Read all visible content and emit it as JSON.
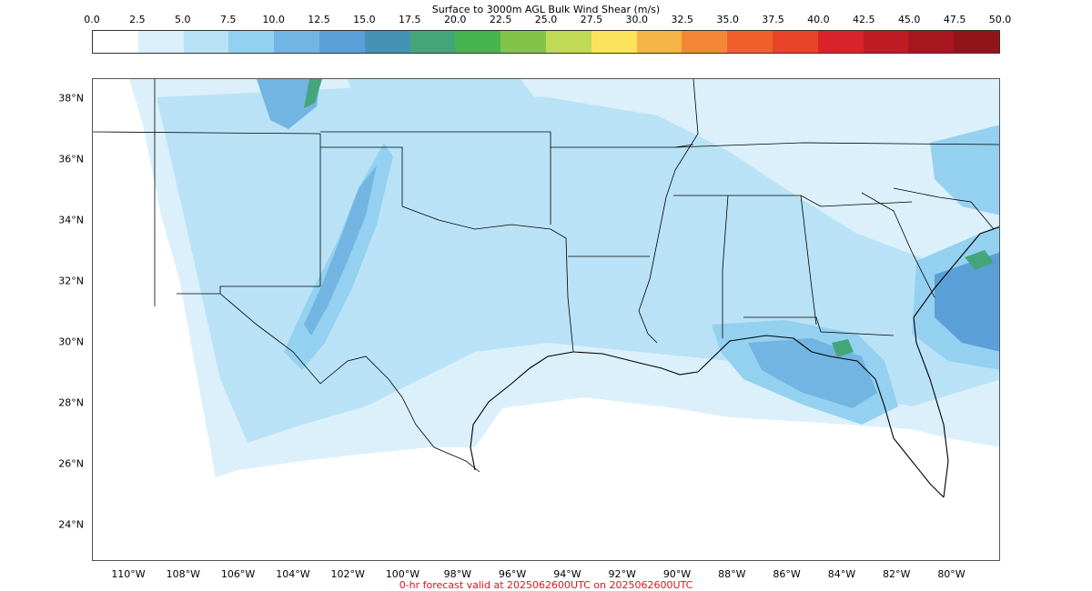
{
  "title": "Surface to 3000m AGL Bulk Wind Shear (m/s)",
  "footer": "0-hr forecast valid at 2025062600UTC on 2025062600UTC",
  "colorbar": {
    "ticks": [
      "0.0",
      "2.5",
      "5.0",
      "7.5",
      "10.0",
      "12.5",
      "15.0",
      "17.5",
      "20.0",
      "22.5",
      "25.0",
      "27.5",
      "30.0",
      "32.5",
      "35.0",
      "37.5",
      "40.0",
      "42.5",
      "45.0",
      "47.5",
      "50.0"
    ],
    "colors": [
      "#ffffff",
      "#dbf0fb",
      "#b9e2f6",
      "#94d0f0",
      "#72b5e2",
      "#5b9fd9",
      "#4593b4",
      "#44a57b",
      "#46b34f",
      "#82c449",
      "#c1da57",
      "#fbe45b",
      "#f7b447",
      "#f48735",
      "#ef5f2b",
      "#e84428",
      "#d8232a",
      "#c01c24",
      "#a8161f",
      "#90151a"
    ]
  },
  "map": {
    "lat_labels": [
      "38°N",
      "36°N",
      "34°N",
      "32°N",
      "30°N",
      "28°N",
      "26°N",
      "24°N"
    ],
    "lon_labels": [
      "110°W",
      "108°W",
      "106°W",
      "104°W",
      "102°W",
      "100°W",
      "98°W",
      "96°W",
      "94°W",
      "92°W",
      "90°W",
      "88°W",
      "86°W",
      "84°W",
      "82°W",
      "80°W"
    ]
  }
}
